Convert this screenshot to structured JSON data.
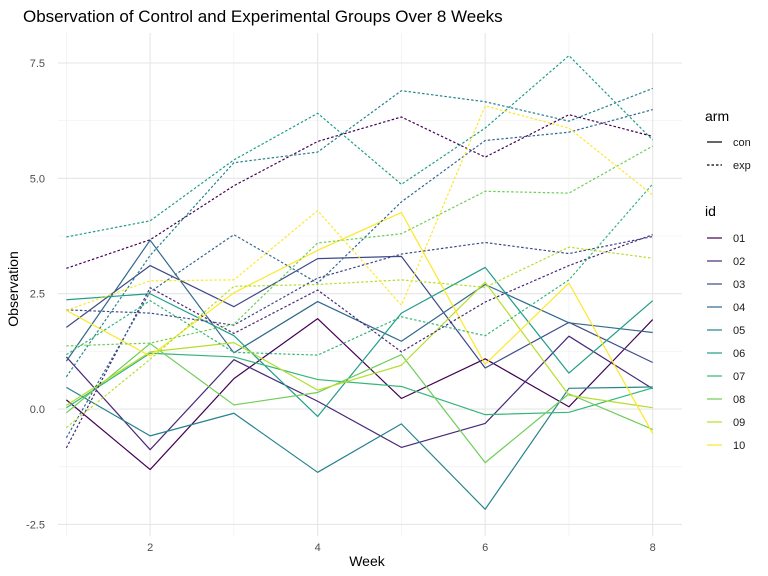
{
  "chart_data": {
    "type": "line",
    "title": "Observation of Control and Experimental Groups Over 8 Weeks",
    "xlabel": "Week",
    "ylabel": "Observation",
    "xlim": [
      0.9,
      8.35
    ],
    "ylim": [
      -2.75,
      8.15
    ],
    "x_ticks": [
      2,
      4,
      6,
      8
    ],
    "y_ticks": [
      -2.5,
      0.0,
      2.5,
      5.0,
      7.5
    ],
    "y_tick_labels": [
      "-2.5",
      "0.0",
      "2.5",
      "5.0",
      "7.5"
    ],
    "x": [
      1,
      2,
      3,
      4,
      5,
      6,
      7,
      8
    ],
    "grid": true,
    "legend_position": "right",
    "legend_arm_title": "arm",
    "legend_id_title": "id",
    "arms": [
      {
        "name": "con",
        "dash": "solid"
      },
      {
        "name": "exp",
        "dash": "dotted"
      }
    ],
    "ids": [
      {
        "id": "01",
        "color": "#440154"
      },
      {
        "id": "02",
        "color": "#482878"
      },
      {
        "id": "03",
        "color": "#3e4989"
      },
      {
        "id": "04",
        "color": "#31688e"
      },
      {
        "id": "05",
        "color": "#26828e"
      },
      {
        "id": "06",
        "color": "#1f9e89"
      },
      {
        "id": "07",
        "color": "#35b779"
      },
      {
        "id": "08",
        "color": "#6ece58"
      },
      {
        "id": "09",
        "color": "#b5de2b"
      },
      {
        "id": "10",
        "color": "#fde725"
      }
    ],
    "series": [
      {
        "arm": "con",
        "id": "01",
        "values": [
          0.2,
          -1.31,
          0.66,
          1.96,
          0.23,
          1.09,
          0.05,
          1.94
        ]
      },
      {
        "arm": "con",
        "id": "02",
        "values": [
          1.13,
          -0.88,
          1.07,
          0.17,
          -0.83,
          -0.31,
          1.58,
          0.44
        ]
      },
      {
        "arm": "con",
        "id": "03",
        "values": [
          1.77,
          3.11,
          2.22,
          3.26,
          3.31,
          0.89,
          1.88,
          1.01
        ]
      },
      {
        "arm": "con",
        "id": "04",
        "values": [
          1.04,
          3.66,
          1.22,
          2.33,
          1.47,
          2.7,
          1.87,
          1.66
        ]
      },
      {
        "arm": "con",
        "id": "05",
        "values": [
          0.47,
          -0.58,
          -0.09,
          -1.37,
          -0.32,
          -2.17,
          0.45,
          0.48
        ]
      },
      {
        "arm": "con",
        "id": "06",
        "values": [
          2.37,
          2.5,
          1.59,
          -0.16,
          2.08,
          3.07,
          0.78,
          2.35
        ]
      },
      {
        "arm": "con",
        "id": "07",
        "values": [
          0.03,
          1.21,
          1.13,
          0.64,
          0.49,
          -0.12,
          -0.07,
          0.46
        ]
      },
      {
        "arm": "con",
        "id": "08",
        "values": [
          -0.08,
          1.42,
          0.09,
          0.36,
          1.18,
          -1.16,
          0.33,
          -0.44
        ]
      },
      {
        "arm": "con",
        "id": "09",
        "values": [
          0.08,
          1.24,
          1.44,
          0.41,
          0.95,
          2.75,
          0.3,
          0.03
        ]
      },
      {
        "arm": "con",
        "id": "10",
        "values": [
          2.14,
          1.15,
          2.52,
          3.44,
          4.26,
          0.97,
          2.73,
          -0.53
        ]
      },
      {
        "arm": "exp",
        "id": "01",
        "values": [
          3.05,
          3.67,
          4.84,
          5.8,
          6.33,
          5.46,
          6.38,
          5.91
        ]
      },
      {
        "arm": "exp",
        "id": "02",
        "values": [
          -0.84,
          2.63,
          1.64,
          2.58,
          1.24,
          2.32,
          3.11,
          3.78
        ]
      },
      {
        "arm": "exp",
        "id": "03",
        "values": [
          2.15,
          2.08,
          1.82,
          2.84,
          3.36,
          3.61,
          3.37,
          3.74
        ]
      },
      {
        "arm": "exp",
        "id": "04",
        "values": [
          -0.62,
          2.54,
          3.78,
          2.73,
          4.49,
          5.82,
          6.0,
          6.49
        ]
      },
      {
        "arm": "exp",
        "id": "05",
        "values": [
          0.7,
          3.33,
          5.34,
          5.57,
          6.9,
          6.66,
          6.24,
          6.95
        ]
      },
      {
        "arm": "exp",
        "id": "06",
        "values": [
          3.73,
          4.08,
          5.4,
          6.41,
          4.87,
          6.09,
          7.66,
          5.83
        ]
      },
      {
        "arm": "exp",
        "id": "07",
        "values": [
          1.18,
          2.35,
          1.23,
          1.17,
          2.0,
          1.59,
          2.8,
          4.88
        ]
      },
      {
        "arm": "exp",
        "id": "08",
        "values": [
          1.37,
          1.43,
          1.84,
          3.6,
          3.8,
          4.72,
          4.68,
          5.7
        ]
      },
      {
        "arm": "exp",
        "id": "09",
        "values": [
          -0.4,
          1.08,
          2.66,
          2.7,
          2.8,
          2.64,
          3.51,
          3.27
        ]
      },
      {
        "arm": "exp",
        "id": "10",
        "values": [
          2.14,
          2.78,
          2.8,
          4.3,
          2.25,
          6.57,
          6.09,
          4.64
        ]
      }
    ]
  }
}
